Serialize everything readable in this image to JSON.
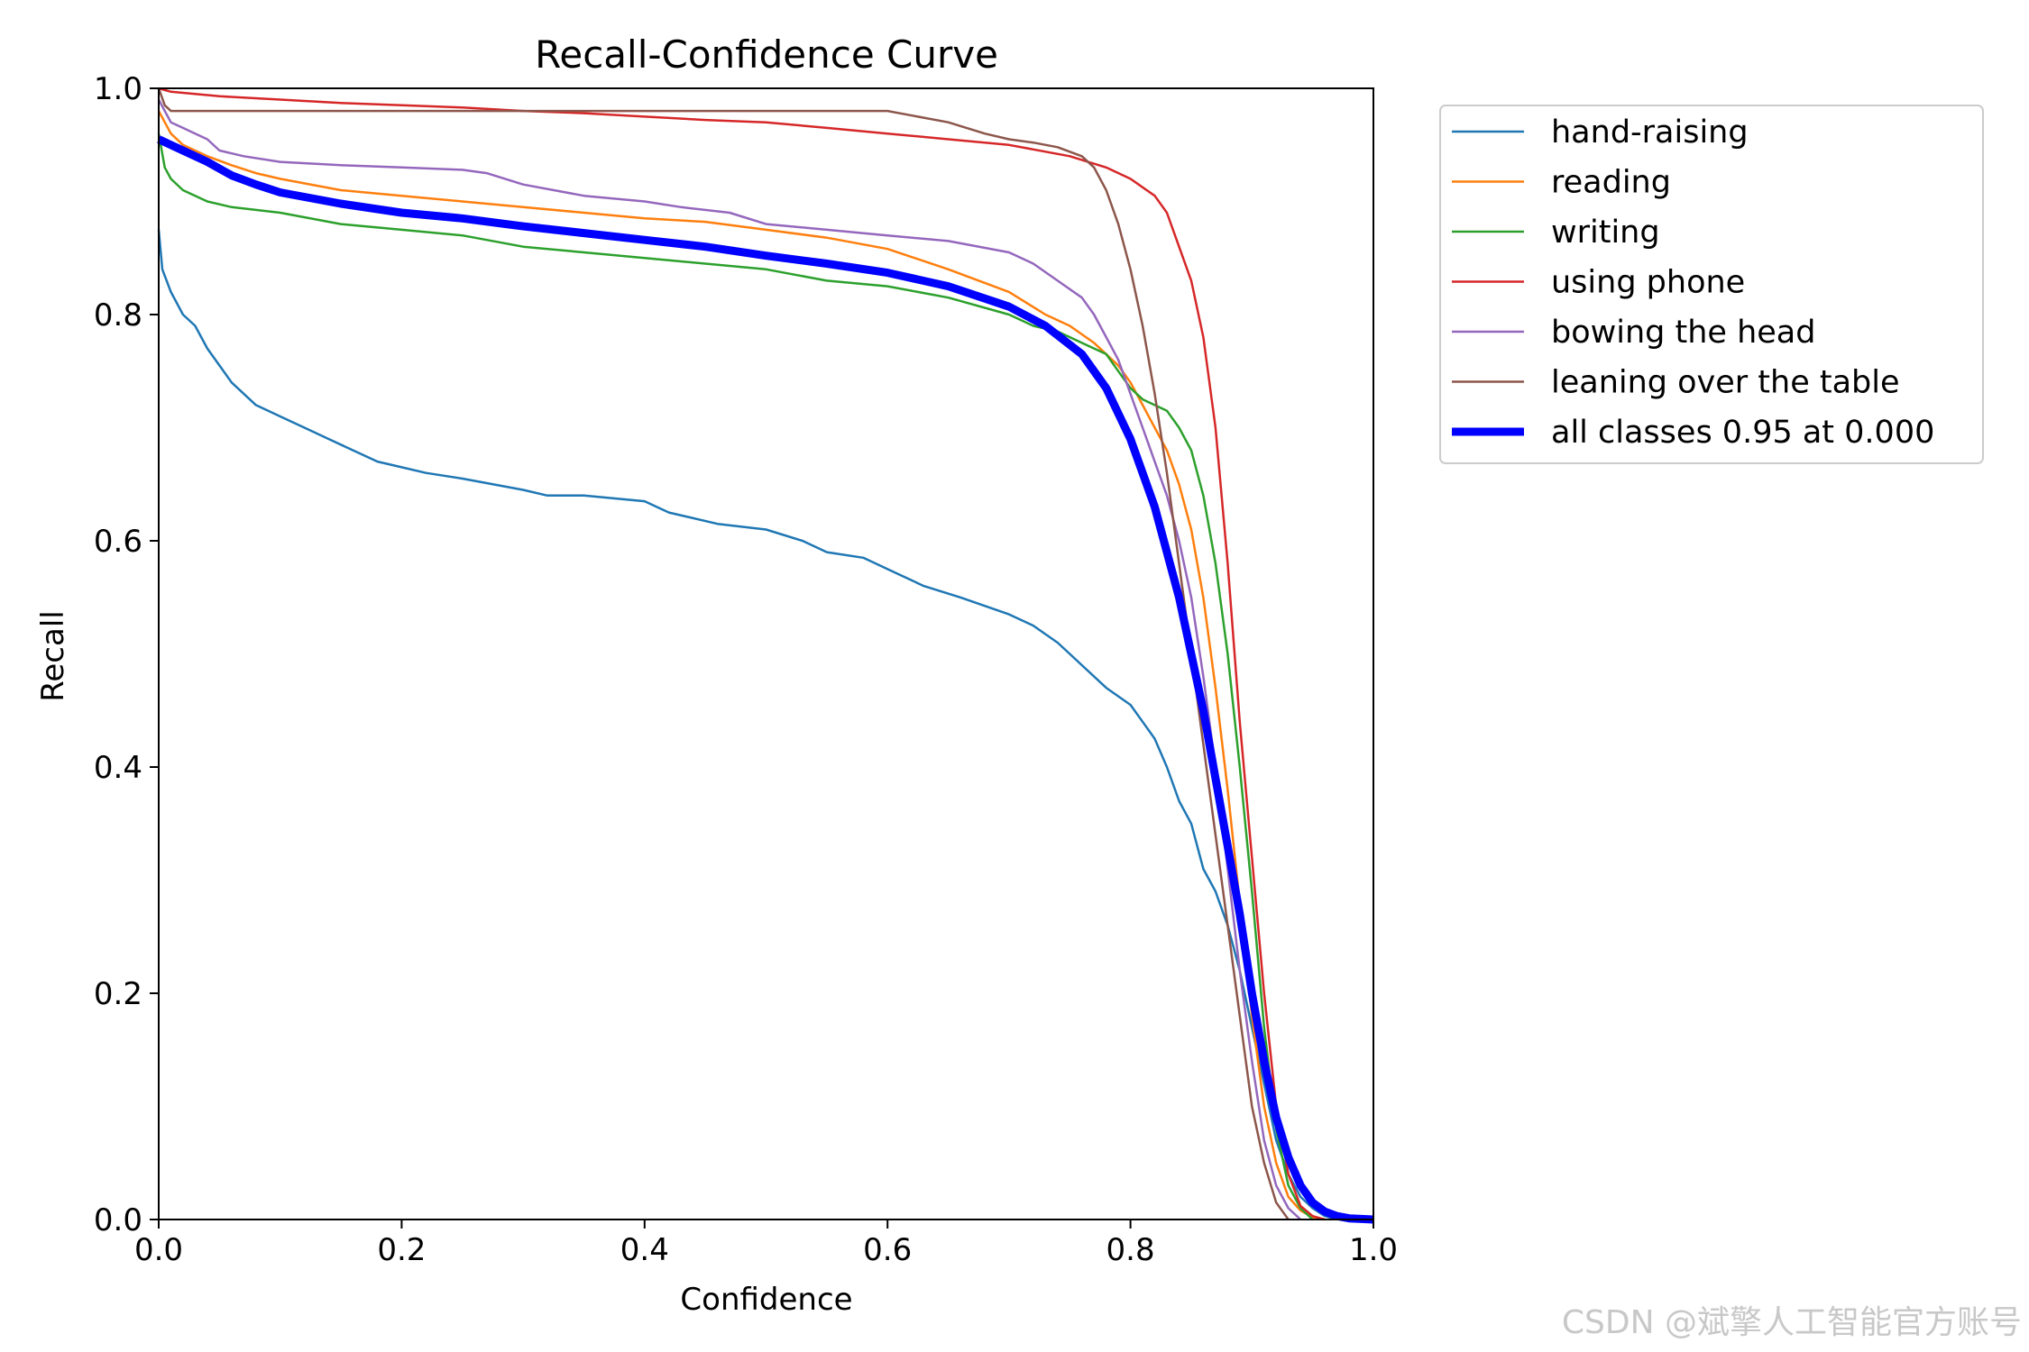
{
  "chart_data": {
    "type": "line",
    "title": "Recall-Confidence Curve",
    "xlabel": "Confidence",
    "ylabel": "Recall",
    "xlim": [
      0,
      1
    ],
    "ylim": [
      0,
      1
    ],
    "xticks": [
      "0.0",
      "0.2",
      "0.4",
      "0.6",
      "0.8",
      "1.0"
    ],
    "yticks": [
      "0.0",
      "0.2",
      "0.4",
      "0.6",
      "0.8",
      "1.0"
    ],
    "grid": false,
    "legend_position": "outside-top-right",
    "series": [
      {
        "name": "hand-raising",
        "color": "#1f77b4",
        "x": [
          0.0,
          0.003,
          0.01,
          0.02,
          0.03,
          0.04,
          0.05,
          0.06,
          0.08,
          0.1,
          0.12,
          0.14,
          0.16,
          0.18,
          0.2,
          0.22,
          0.25,
          0.3,
          0.32,
          0.35,
          0.4,
          0.42,
          0.46,
          0.5,
          0.53,
          0.55,
          0.58,
          0.6,
          0.63,
          0.66,
          0.7,
          0.72,
          0.74,
          0.75,
          0.76,
          0.78,
          0.8,
          0.81,
          0.82,
          0.83,
          0.84,
          0.85,
          0.86,
          0.87,
          0.88,
          0.89,
          0.9,
          0.91,
          0.92,
          0.93,
          0.94,
          0.95,
          0.96,
          0.97
        ],
        "y": [
          0.875,
          0.84,
          0.82,
          0.8,
          0.79,
          0.77,
          0.755,
          0.74,
          0.72,
          0.71,
          0.7,
          0.69,
          0.68,
          0.67,
          0.665,
          0.66,
          0.655,
          0.645,
          0.64,
          0.64,
          0.635,
          0.625,
          0.615,
          0.61,
          0.6,
          0.59,
          0.585,
          0.575,
          0.56,
          0.55,
          0.535,
          0.525,
          0.51,
          0.5,
          0.49,
          0.47,
          0.455,
          0.44,
          0.425,
          0.4,
          0.37,
          0.35,
          0.31,
          0.29,
          0.26,
          0.22,
          0.17,
          0.12,
          0.07,
          0.04,
          0.02,
          0.01,
          0.003,
          0.0
        ]
      },
      {
        "name": "reading",
        "color": "#ff7f0e",
        "x": [
          0.0,
          0.01,
          0.02,
          0.04,
          0.06,
          0.08,
          0.1,
          0.15,
          0.2,
          0.25,
          0.3,
          0.35,
          0.4,
          0.45,
          0.5,
          0.55,
          0.6,
          0.65,
          0.7,
          0.73,
          0.75,
          0.77,
          0.78,
          0.79,
          0.8,
          0.81,
          0.82,
          0.83,
          0.84,
          0.85,
          0.86,
          0.87,
          0.88,
          0.89,
          0.9,
          0.91,
          0.92,
          0.93,
          0.94,
          0.95,
          0.96
        ],
        "y": [
          0.98,
          0.96,
          0.95,
          0.94,
          0.932,
          0.925,
          0.92,
          0.91,
          0.905,
          0.9,
          0.895,
          0.89,
          0.885,
          0.882,
          0.875,
          0.868,
          0.858,
          0.84,
          0.82,
          0.8,
          0.79,
          0.775,
          0.765,
          0.755,
          0.74,
          0.72,
          0.7,
          0.68,
          0.65,
          0.61,
          0.55,
          0.47,
          0.38,
          0.28,
          0.18,
          0.1,
          0.05,
          0.02,
          0.008,
          0.002,
          0.0
        ]
      },
      {
        "name": "writing",
        "color": "#2ca02c",
        "x": [
          0.0,
          0.005,
          0.01,
          0.02,
          0.04,
          0.06,
          0.1,
          0.15,
          0.2,
          0.25,
          0.3,
          0.35,
          0.4,
          0.45,
          0.5,
          0.55,
          0.6,
          0.65,
          0.7,
          0.72,
          0.74,
          0.76,
          0.78,
          0.79,
          0.8,
          0.81,
          0.82,
          0.83,
          0.84,
          0.85,
          0.86,
          0.87,
          0.88,
          0.89,
          0.9,
          0.91,
          0.92,
          0.93,
          0.94,
          0.95
        ],
        "y": [
          0.96,
          0.93,
          0.92,
          0.91,
          0.9,
          0.895,
          0.89,
          0.88,
          0.875,
          0.87,
          0.86,
          0.855,
          0.85,
          0.845,
          0.84,
          0.83,
          0.825,
          0.815,
          0.8,
          0.79,
          0.785,
          0.775,
          0.765,
          0.75,
          0.735,
          0.725,
          0.72,
          0.715,
          0.7,
          0.68,
          0.64,
          0.58,
          0.5,
          0.4,
          0.29,
          0.17,
          0.08,
          0.03,
          0.01,
          0.0
        ]
      },
      {
        "name": "using phone",
        "color": "#d62728",
        "x": [
          0.0,
          0.01,
          0.05,
          0.1,
          0.15,
          0.2,
          0.25,
          0.3,
          0.35,
          0.4,
          0.45,
          0.5,
          0.55,
          0.6,
          0.65,
          0.7,
          0.75,
          0.78,
          0.8,
          0.82,
          0.83,
          0.84,
          0.85,
          0.86,
          0.87,
          0.88,
          0.89,
          0.9,
          0.91,
          0.92,
          0.93,
          0.94,
          0.95,
          0.96
        ],
        "y": [
          1.0,
          0.997,
          0.993,
          0.99,
          0.987,
          0.985,
          0.983,
          0.98,
          0.978,
          0.975,
          0.972,
          0.97,
          0.965,
          0.96,
          0.955,
          0.95,
          0.94,
          0.93,
          0.92,
          0.905,
          0.89,
          0.86,
          0.83,
          0.78,
          0.7,
          0.58,
          0.44,
          0.32,
          0.2,
          0.1,
          0.04,
          0.012,
          0.003,
          0.0
        ]
      },
      {
        "name": "bowing the head",
        "color": "#9467bd",
        "x": [
          0.0,
          0.005,
          0.01,
          0.02,
          0.03,
          0.04,
          0.05,
          0.07,
          0.1,
          0.15,
          0.2,
          0.25,
          0.27,
          0.3,
          0.35,
          0.4,
          0.43,
          0.47,
          0.5,
          0.55,
          0.6,
          0.65,
          0.7,
          0.72,
          0.74,
          0.76,
          0.77,
          0.78,
          0.79,
          0.8,
          0.81,
          0.82,
          0.83,
          0.84,
          0.85,
          0.86,
          0.87,
          0.88,
          0.89,
          0.9,
          0.91,
          0.92,
          0.93,
          0.94
        ],
        "y": [
          0.99,
          0.98,
          0.97,
          0.965,
          0.96,
          0.955,
          0.945,
          0.94,
          0.935,
          0.932,
          0.93,
          0.928,
          0.925,
          0.915,
          0.905,
          0.9,
          0.895,
          0.89,
          0.88,
          0.875,
          0.87,
          0.865,
          0.855,
          0.845,
          0.83,
          0.815,
          0.8,
          0.78,
          0.76,
          0.73,
          0.7,
          0.67,
          0.64,
          0.6,
          0.55,
          0.48,
          0.4,
          0.31,
          0.22,
          0.14,
          0.07,
          0.03,
          0.01,
          0.0
        ]
      },
      {
        "name": "leaning over the table",
        "color": "#8c564b",
        "x": [
          0.0,
          0.005,
          0.01,
          0.05,
          0.1,
          0.2,
          0.3,
          0.4,
          0.5,
          0.6,
          0.65,
          0.68,
          0.7,
          0.72,
          0.74,
          0.76,
          0.77,
          0.78,
          0.79,
          0.8,
          0.81,
          0.82,
          0.83,
          0.84,
          0.85,
          0.86,
          0.87,
          0.88,
          0.89,
          0.9,
          0.91,
          0.92,
          0.93
        ],
        "y": [
          1.0,
          0.985,
          0.98,
          0.98,
          0.98,
          0.98,
          0.98,
          0.98,
          0.98,
          0.98,
          0.97,
          0.96,
          0.955,
          0.952,
          0.948,
          0.94,
          0.93,
          0.91,
          0.88,
          0.84,
          0.79,
          0.73,
          0.66,
          0.58,
          0.5,
          0.42,
          0.34,
          0.26,
          0.18,
          0.1,
          0.05,
          0.015,
          0.0
        ]
      },
      {
        "name": "all classes 0.95 at 0.000",
        "color": "#0000ff",
        "bold": true,
        "x": [
          0.0,
          0.01,
          0.02,
          0.04,
          0.06,
          0.08,
          0.1,
          0.15,
          0.2,
          0.25,
          0.3,
          0.35,
          0.4,
          0.45,
          0.5,
          0.55,
          0.6,
          0.65,
          0.7,
          0.73,
          0.76,
          0.78,
          0.8,
          0.82,
          0.84,
          0.86,
          0.88,
          0.89,
          0.9,
          0.91,
          0.92,
          0.93,
          0.94,
          0.95,
          0.96,
          0.97,
          0.98,
          1.0
        ],
        "y": [
          0.955,
          0.95,
          0.945,
          0.935,
          0.923,
          0.915,
          0.908,
          0.898,
          0.89,
          0.885,
          0.878,
          0.872,
          0.866,
          0.86,
          0.852,
          0.845,
          0.837,
          0.825,
          0.807,
          0.79,
          0.765,
          0.735,
          0.69,
          0.63,
          0.55,
          0.45,
          0.33,
          0.27,
          0.2,
          0.14,
          0.09,
          0.055,
          0.03,
          0.015,
          0.007,
          0.003,
          0.001,
          0.0
        ]
      }
    ]
  },
  "watermark": "CSDN @斌擎人工智能官方账号"
}
